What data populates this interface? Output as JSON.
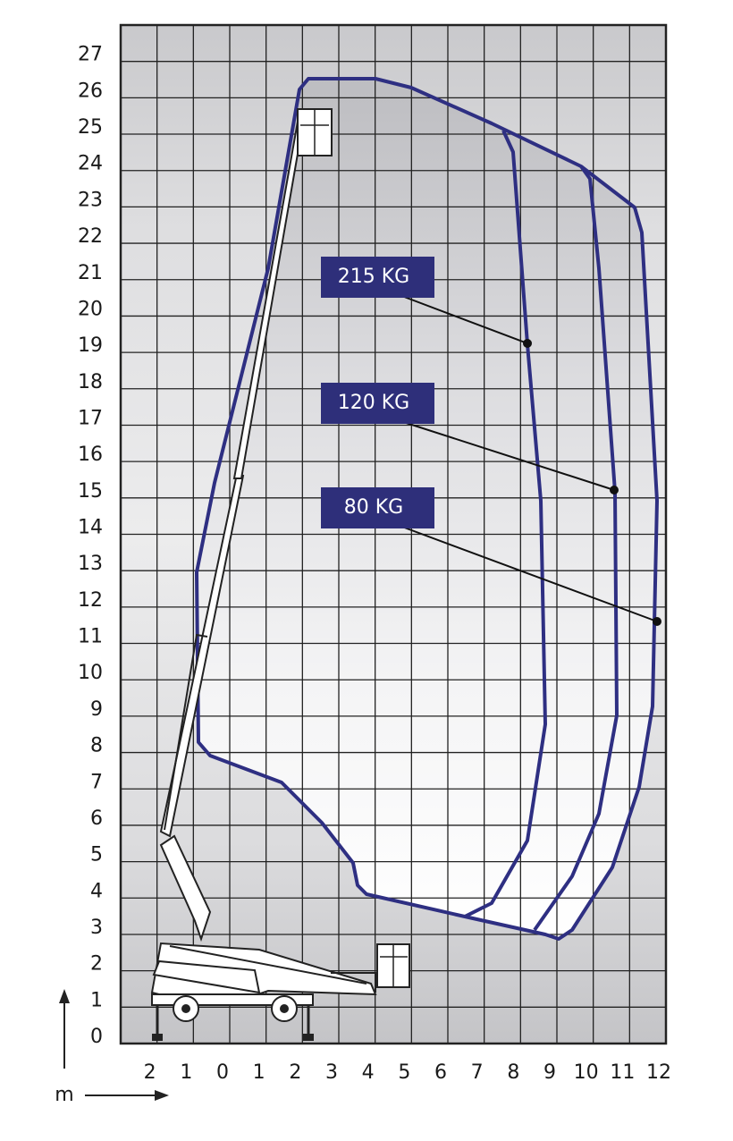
{
  "y_axis": {
    "labels": [
      "0",
      "1",
      "2",
      "3",
      "4",
      "5",
      "6",
      "7",
      "8",
      "9",
      "10",
      "11",
      "12",
      "13",
      "14",
      "15",
      "16",
      "17",
      "18",
      "19",
      "20",
      "21",
      "22",
      "23",
      "24",
      "25",
      "26",
      "27"
    ]
  },
  "x_axis": {
    "labels": [
      "2",
      "1",
      "0",
      "1",
      "2",
      "3",
      "4",
      "5",
      "6",
      "7",
      "8",
      "9",
      "10",
      "11",
      "12"
    ],
    "unit": "m"
  },
  "loads": [
    {
      "label": "215 KG"
    },
    {
      "label": "120 KG"
    },
    {
      "label": "80 KG"
    }
  ]
}
